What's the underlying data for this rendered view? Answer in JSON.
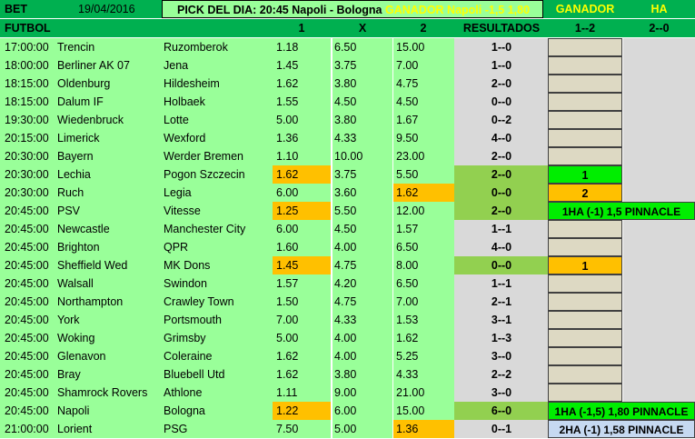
{
  "header": {
    "bet_label": "BET",
    "date": "19/04/2016",
    "pick_label": "PICK DEL DIA:",
    "pick_match": "20:45 Napoli - Bologna",
    "pick_result": "GANADOR Napoli -1,5  1,80",
    "ganador_label": "GANADOR",
    "ha_label": "HA"
  },
  "subheader": {
    "sport": "FUTBOL",
    "col_1": "1",
    "col_x": "X",
    "col_2": "2",
    "resultados": "RESULTADOS",
    "ganador_range": "1--2",
    "ha_range": "2--0"
  },
  "colors": {
    "header_green": "#00b050",
    "row_green": "#99ff99",
    "highlight_orange": "#ffc000",
    "win_green": "#00ee00",
    "result_olive": "#92d050",
    "result_grey": "#d9d9d9",
    "empty_tan": "#ddd9c3",
    "pale_blue": "#c6d9f1"
  },
  "matches": [
    {
      "time": "17:00:00",
      "home": "Trencin",
      "away": "Ruzomberok",
      "o1": "1.18",
      "ox": "6.50",
      "o2": "15.00",
      "result": "1--0",
      "hl": "",
      "res_hl": false,
      "pick": "",
      "pick_style": "tan"
    },
    {
      "time": "18:00:00",
      "home": "Berliner AK 07",
      "away": "Jena",
      "o1": "1.45",
      "ox": "3.75",
      "o2": "7.00",
      "result": "1--0",
      "hl": "",
      "res_hl": false,
      "pick": "",
      "pick_style": "tan"
    },
    {
      "time": "18:15:00",
      "home": "Oldenburg",
      "away": "Hildesheim",
      "o1": "1.62",
      "ox": "3.80",
      "o2": "4.75",
      "result": "2--0",
      "hl": "",
      "res_hl": false,
      "pick": "",
      "pick_style": "tan"
    },
    {
      "time": "18:15:00",
      "home": "Dalum IF",
      "away": "Holbaek",
      "o1": "1.55",
      "ox": "4.50",
      "o2": "4.50",
      "result": "0--0",
      "hl": "",
      "res_hl": false,
      "pick": "",
      "pick_style": "tan"
    },
    {
      "time": "19:30:00",
      "home": "Wiedenbruck",
      "away": "Lotte",
      "o1": "5.00",
      "ox": "3.80",
      "o2": "1.67",
      "result": "0--2",
      "hl": "",
      "res_hl": false,
      "pick": "",
      "pick_style": "tan"
    },
    {
      "time": "20:15:00",
      "home": "Limerick",
      "away": "Wexford",
      "o1": "1.36",
      "ox": "4.33",
      "o2": "9.50",
      "result": "4--0",
      "hl": "",
      "res_hl": false,
      "pick": "",
      "pick_style": "tan"
    },
    {
      "time": "20:30:00",
      "home": "Bayern",
      "away": "Werder Bremen",
      "o1": "1.10",
      "ox": "10.00",
      "o2": "23.00",
      "result": "2--0",
      "hl": "",
      "res_hl": false,
      "pick": "",
      "pick_style": "tan"
    },
    {
      "time": "20:30:00",
      "home": "Lechia",
      "away": "Pogon Szczecin",
      "o1": "1.62",
      "ox": "3.75",
      "o2": "5.50",
      "result": "2--0",
      "hl": "o1",
      "res_hl": true,
      "pick": "1",
      "pick_style": "lime"
    },
    {
      "time": "20:30:00",
      "home": "Ruch",
      "away": "Legia",
      "o1": "6.00",
      "ox": "3.60",
      "o2": "1.62",
      "result": "0--0",
      "hl": "o2",
      "res_hl": true,
      "pick": "2",
      "pick_style": "orange"
    },
    {
      "time": "20:45:00",
      "home": "PSV",
      "away": "Vitesse",
      "o1": "1.25",
      "ox": "5.50",
      "o2": "12.00",
      "result": "2--0",
      "hl": "o1",
      "res_hl": true,
      "pick": "1HA (-1) 1,5  PINNACLE",
      "pick_style": "lime-wide"
    },
    {
      "time": "20:45:00",
      "home": "Newcastle",
      "away": "Manchester City",
      "o1": "6.00",
      "ox": "4.50",
      "o2": "1.57",
      "result": "1--1",
      "hl": "",
      "res_hl": false,
      "pick": "",
      "pick_style": "tan"
    },
    {
      "time": "20:45:00",
      "home": "Brighton",
      "away": "QPR",
      "o1": "1.60",
      "ox": "4.00",
      "o2": "6.50",
      "result": "4--0",
      "hl": "",
      "res_hl": false,
      "pick": "",
      "pick_style": "tan"
    },
    {
      "time": "20:45:00",
      "home": "Sheffield Wed",
      "away": "MK Dons",
      "o1": "1.45",
      "ox": "4.75",
      "o2": "8.00",
      "result": "0--0",
      "hl": "o1",
      "res_hl": true,
      "pick": "1",
      "pick_style": "orange"
    },
    {
      "time": "20:45:00",
      "home": "Walsall",
      "away": "Swindon",
      "o1": "1.57",
      "ox": "4.20",
      "o2": "6.50",
      "result": "1--1",
      "hl": "",
      "res_hl": false,
      "pick": "",
      "pick_style": "tan"
    },
    {
      "time": "20:45:00",
      "home": "Northampton",
      "away": "Crawley Town",
      "o1": "1.50",
      "ox": "4.75",
      "o2": "7.00",
      "result": "2--1",
      "hl": "",
      "res_hl": false,
      "pick": "",
      "pick_style": "tan"
    },
    {
      "time": "20:45:00",
      "home": "York",
      "away": "Portsmouth",
      "o1": "7.00",
      "ox": "4.33",
      "o2": "1.53",
      "result": "3--1",
      "hl": "",
      "res_hl": false,
      "pick": "",
      "pick_style": "tan"
    },
    {
      "time": "20:45:00",
      "home": "Woking",
      "away": "Grimsby",
      "o1": "5.00",
      "ox": "4.00",
      "o2": "1.62",
      "result": "1--3",
      "hl": "",
      "res_hl": false,
      "pick": "",
      "pick_style": "tan"
    },
    {
      "time": "20:45:00",
      "home": "Glenavon",
      "away": "Coleraine",
      "o1": "1.62",
      "ox": "4.00",
      "o2": "5.25",
      "result": "3--0",
      "hl": "",
      "res_hl": false,
      "pick": "",
      "pick_style": "tan"
    },
    {
      "time": "20:45:00",
      "home": "Bray",
      "away": "Bluebell Utd",
      "o1": "1.62",
      "ox": "3.80",
      "o2": "4.33",
      "result": "2--2",
      "hl": "",
      "res_hl": false,
      "pick": "",
      "pick_style": "tan"
    },
    {
      "time": "20:45:00",
      "home": "Shamrock Rovers",
      "away": "Athlone",
      "o1": "1.11",
      "ox": "9.00",
      "o2": "21.00",
      "result": "3--0",
      "hl": "",
      "res_hl": false,
      "pick": "",
      "pick_style": "tan"
    },
    {
      "time": "20:45:00",
      "home": "Napoli",
      "away": "Bologna",
      "o1": "1.22",
      "ox": "6.00",
      "o2": "15.00",
      "result": "6--0",
      "hl": "o1",
      "res_hl": true,
      "pick": "1HA (-1,5) 1,80  PINNACLE",
      "pick_style": "lime-wide"
    },
    {
      "time": "21:00:00",
      "home": "Lorient",
      "away": "PSG",
      "o1": "7.50",
      "ox": "5.00",
      "o2": "1.36",
      "result": "0--1",
      "hl": "o2",
      "res_hl": false,
      "pick": "2HA (-1) 1,58  PINNACLE",
      "pick_style": "pale-wide"
    }
  ]
}
